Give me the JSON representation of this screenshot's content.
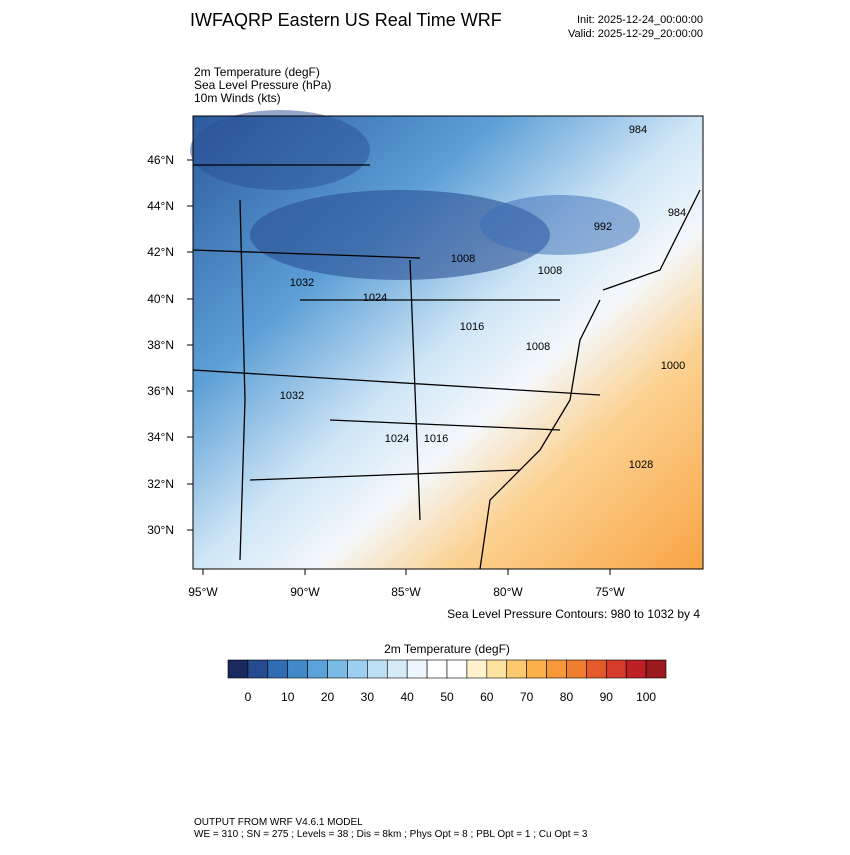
{
  "header": {
    "title": "IWFAQRP Eastern US Real Time WRF",
    "init": "Init: 2025-12-24_00:00:00",
    "valid": "Valid: 2025-12-29_20:00:00"
  },
  "fields": [
    "2m Temperature   (degF)",
    "Sea Level Pressure   (hPa)",
    "10m Winds   (kts)"
  ],
  "map": {
    "lat_labels": [
      "46°N",
      "44°N",
      "42°N",
      "40°N",
      "38°N",
      "36°N",
      "34°N",
      "32°N",
      "30°N"
    ],
    "lon_labels": [
      "95°W",
      "90°W",
      "85°W",
      "80°W",
      "75°W"
    ],
    "contour_labels": [
      "984",
      "984",
      "992",
      "1008",
      "1008",
      "1032",
      "1024",
      "1016",
      "1008",
      "1000",
      "1032",
      "1024",
      "1016",
      "1028"
    ],
    "contour_note": "Sea Level Pressure Contours: 980 to 1032 by 4"
  },
  "colorbar": {
    "title": "2m Temperature  (degF)",
    "lim": [
      -5,
      105
    ],
    "ticks": [
      0,
      10,
      20,
      30,
      40,
      50,
      60,
      70,
      80,
      90,
      100
    ],
    "colors": [
      "#1b2a5e",
      "#244c8f",
      "#2f6db5",
      "#4289c8",
      "#5aa3d9",
      "#7abbe6",
      "#9dd0f0",
      "#bcdff4",
      "#d5ebf8",
      "#edf6fb",
      "#ffffff",
      "#ffffff",
      "#fff2cc",
      "#fde3a0",
      "#fcc96e",
      "#fbb04c",
      "#f7993a",
      "#f07f2f",
      "#e55a2b",
      "#d63a28",
      "#bf2026",
      "#9a1a1e"
    ]
  },
  "footer": {
    "line1": "OUTPUT FROM WRF V4.6.1 MODEL",
    "line2": "WE = 310 ; SN = 275 ; Levels = 38 ; Dis = 8km ; Phys Opt = 8 ; PBL Opt = 1 ; Cu Opt = 3"
  }
}
